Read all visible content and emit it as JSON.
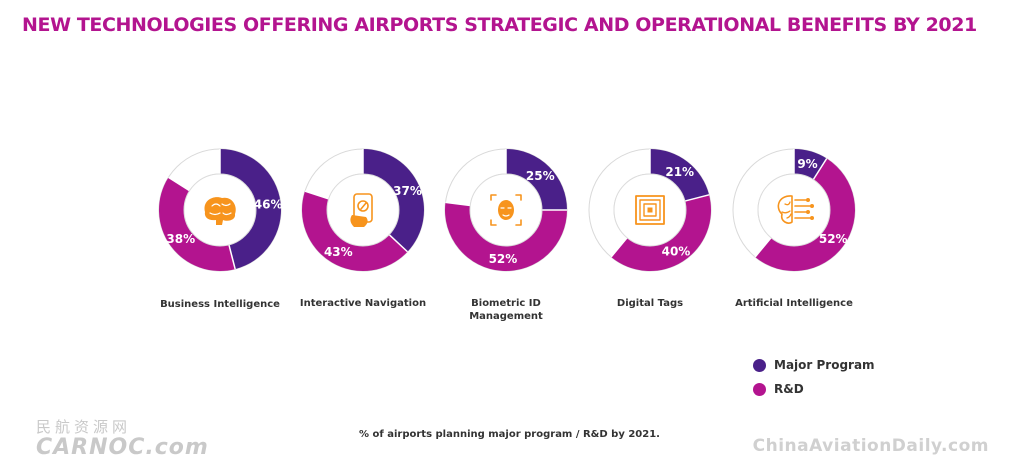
{
  "title": "NEW TECHNOLOGIES OFFERING AIRPORTS STRATEGIC AND OPERATIONAL BENEFITS BY 2021",
  "colors": {
    "major_program": "#4a2089",
    "rnd": "#b3148f",
    "icon": "#f7941d",
    "title": "#b3148f"
  },
  "legend": [
    {
      "label": "Major Program",
      "color": "#4a2089"
    },
    {
      "label": "R&D",
      "color": "#b3148f"
    }
  ],
  "footnote": "% of airports planning major program / R&D by 2021.",
  "watermarks": {
    "left_cn": "民航资源网",
    "left_en": "CARNOC.com",
    "right": "ChinaAviationDaily.com"
  },
  "chart_data": {
    "type": "pie",
    "title": "NEW TECHNOLOGIES OFFERING AIRPORTS STRATEGIC AND OPERATIONAL BENEFITS BY 2021",
    "categories": [
      "Business Intelligence",
      "Interactive Navigation",
      "Biometric ID Management",
      "Digital Tags",
      "Artificial Intelligence"
    ],
    "series": [
      {
        "name": "Major Program",
        "values": [
          46,
          37,
          25,
          21,
          9
        ],
        "labels": [
          "46%",
          "37%",
          "25%",
          "21%",
          "9%"
        ]
      },
      {
        "name": "R&D",
        "values": [
          38,
          43,
          52,
          40,
          52
        ],
        "labels": [
          "38%",
          "43%",
          "52%",
          "40%",
          "52%"
        ]
      }
    ],
    "items": [
      {
        "name": "Business Intelligence",
        "icon": "brain-icon"
      },
      {
        "name": "Interactive Navigation",
        "icon": "phone-navigation-icon"
      },
      {
        "name": "Biometric ID Management",
        "icon": "face-scan-icon"
      },
      {
        "name": "Digital Tags",
        "icon": "rfid-tag-icon"
      },
      {
        "name": "Artificial Intelligence",
        "icon": "ai-brain-circuit-icon"
      }
    ],
    "legend_position": "bottom-right",
    "footnote": "% of airports planning major program / R&D by 2021."
  }
}
